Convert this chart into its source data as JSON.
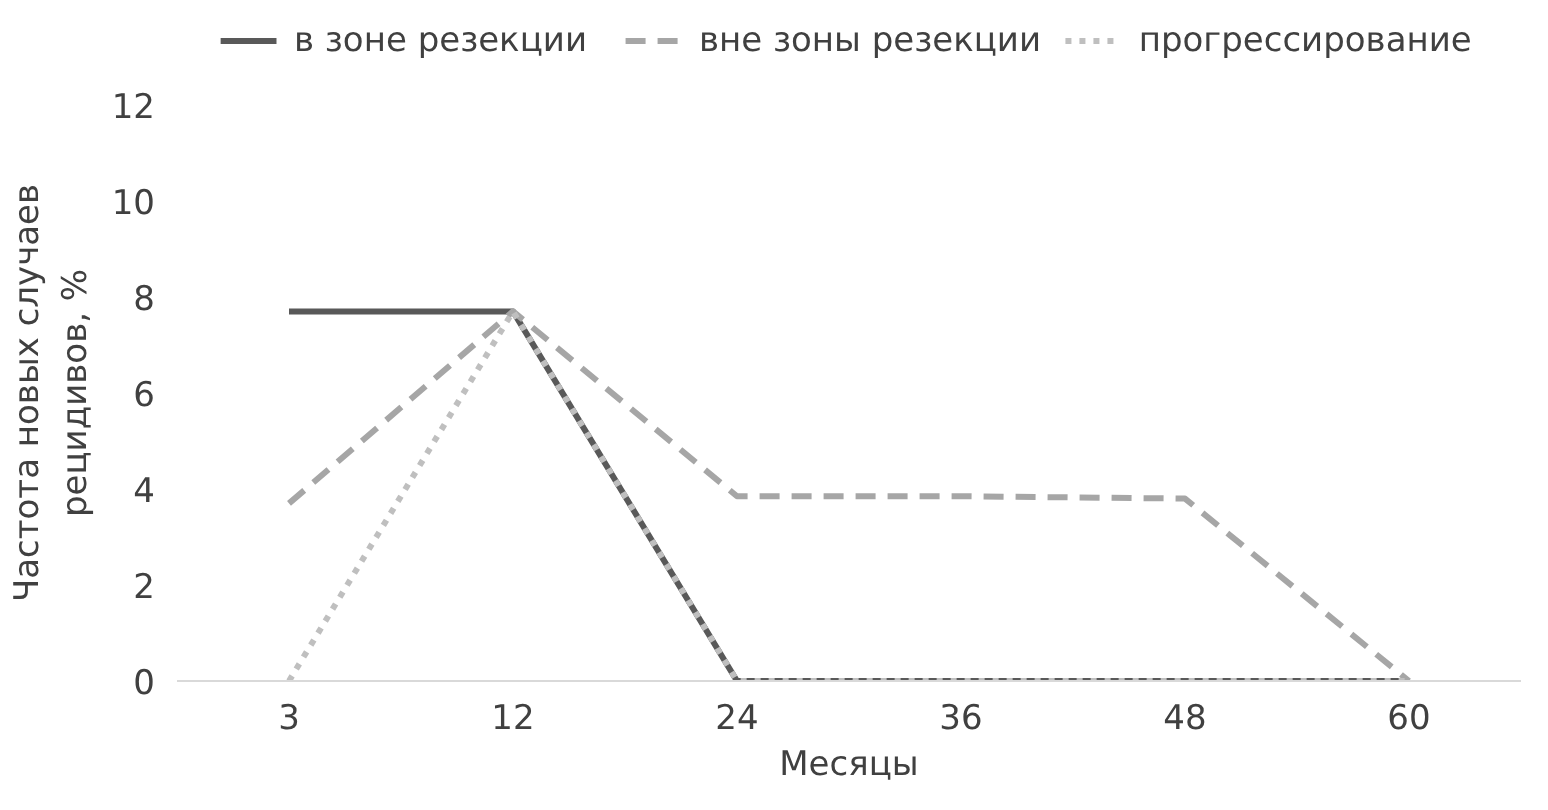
{
  "chart_data": {
    "type": "line",
    "xlabel": "Месяцы",
    "ylabel": "Частота новых случаев\nрецидивов, %",
    "categories": [
      "3",
      "12",
      "24",
      "36",
      "48",
      "60"
    ],
    "series": [
      {
        "name": "в зоне резекции",
        "color": "#595959",
        "line_style": "solid",
        "values": [
          7.7,
          7.7,
          0,
          0,
          0,
          0
        ]
      },
      {
        "name": "вне зоны резекции",
        "color": "#a6a6a6",
        "line_style": "dashed",
        "values": [
          3.7,
          7.7,
          3.85,
          3.85,
          3.8,
          0
        ]
      },
      {
        "name": "прогрессирование",
        "color": "#bfbfbf",
        "line_style": "dotted",
        "values": [
          0,
          7.7,
          0,
          0,
          0,
          0
        ]
      }
    ],
    "ylim": [
      0,
      12
    ],
    "yticks": [
      0,
      2,
      4,
      6,
      8,
      10,
      12
    ],
    "grid": false,
    "legend": "top",
    "marker": "none"
  }
}
